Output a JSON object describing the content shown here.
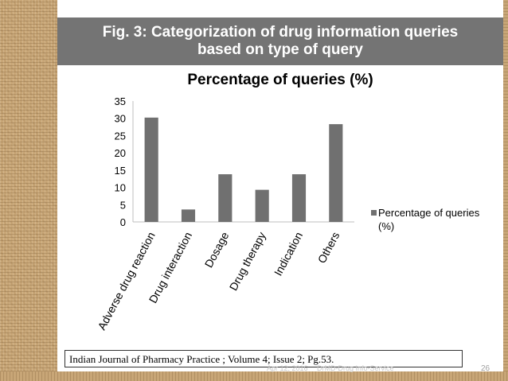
{
  "slide": {
    "header_line1": "Fig. 3: Categorization of drug information queries",
    "header_line2": "based on type of query",
    "citation": "Indian Journal of  Pharmacy Practice ; Volume 4; Issue 2;  Pg.53.",
    "footer_date": "Apr 12, 2016",
    "footer_site": "DrMD-Drug Info-Service",
    "page_number": "26"
  },
  "colors": {
    "bar": "#707070",
    "header_bg": "#747474",
    "axis": "#bfbfbf"
  },
  "chart_data": {
    "type": "bar",
    "title": "Percentage of queries (%)",
    "categories": [
      "Adverse drug reaction",
      "Drug interaction",
      "Dosage",
      "Drug therapy",
      "Indication",
      "Others"
    ],
    "series": [
      {
        "name": "Percentage of queries (%)",
        "values": [
          30.2,
          3.6,
          13.8,
          9.3,
          13.8,
          28.3
        ]
      }
    ],
    "ylim": [
      0,
      35
    ],
    "yticks": [
      0,
      5,
      10,
      15,
      20,
      25,
      30,
      35
    ],
    "grid": false,
    "legend_position": "right",
    "xlabel": "",
    "ylabel": ""
  }
}
